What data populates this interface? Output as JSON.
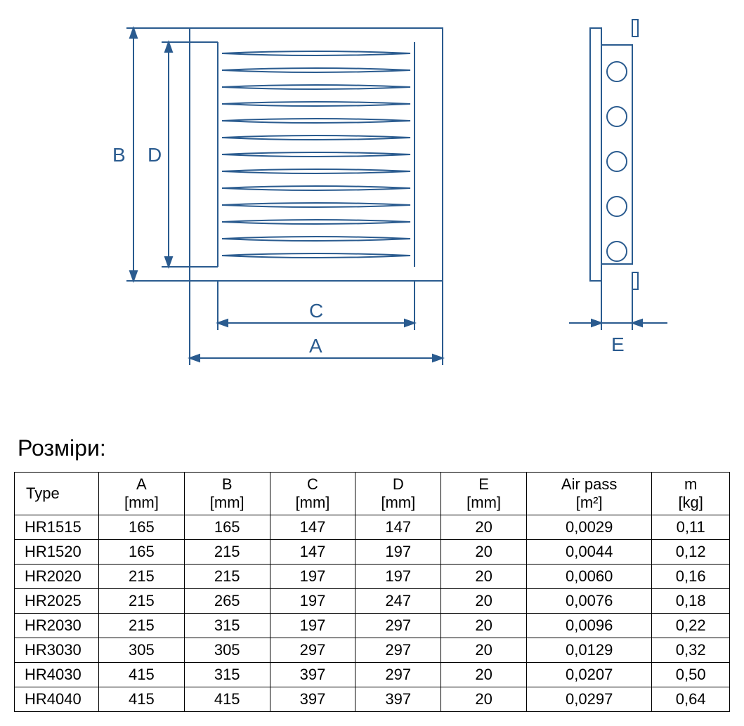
{
  "section_title": "Розміри:",
  "diagram": {
    "stroke_color": "#2a5b8f",
    "stroke_width": 2,
    "font_size": 28,
    "labels": {
      "A": "A",
      "B": "B",
      "C": "C",
      "D": "D",
      "E": "E"
    }
  },
  "table": {
    "columns": [
      {
        "l1": "Type",
        "l2": ""
      },
      {
        "l1": "A",
        "l2": "[mm]"
      },
      {
        "l1": "B",
        "l2": "[mm]"
      },
      {
        "l1": "C",
        "l2": "[mm]"
      },
      {
        "l1": "D",
        "l2": "[mm]"
      },
      {
        "l1": "E",
        "l2": "[mm]"
      },
      {
        "l1": "Air pass",
        "l2": "[m²]"
      },
      {
        "l1": "m",
        "l2": "[kg]"
      }
    ],
    "rows": [
      [
        "HR1515",
        "165",
        "165",
        "147",
        "147",
        "20",
        "0,0029",
        "0,11"
      ],
      [
        "HR1520",
        "165",
        "215",
        "147",
        "197",
        "20",
        "0,0044",
        "0,12"
      ],
      [
        "HR2020",
        "215",
        "215",
        "197",
        "197",
        "20",
        "0,0060",
        "0,16"
      ],
      [
        "HR2025",
        "215",
        "265",
        "197",
        "247",
        "20",
        "0,0076",
        "0,18"
      ],
      [
        "HR2030",
        "215",
        "315",
        "197",
        "297",
        "20",
        "0,0096",
        "0,22"
      ],
      [
        "HR3030",
        "305",
        "305",
        "297",
        "297",
        "20",
        "0,0129",
        "0,32"
      ],
      [
        "HR4030",
        "415",
        "315",
        "397",
        "297",
        "20",
        "0,0207",
        "0,50"
      ],
      [
        "HR4040",
        "415",
        "415",
        "397",
        "397",
        "20",
        "0,0297",
        "0,64"
      ]
    ]
  }
}
